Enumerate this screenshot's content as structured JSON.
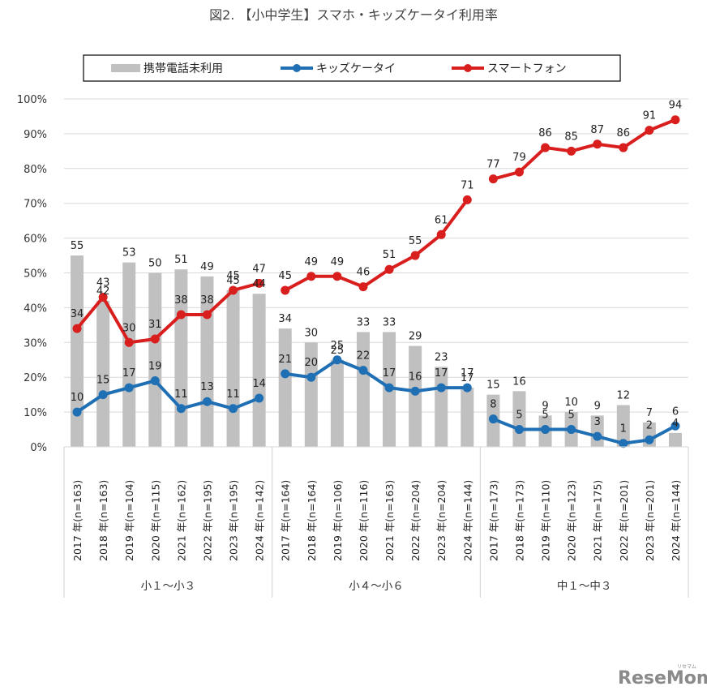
{
  "page": {
    "watermark": "ReseMom",
    "watermark_ruby": "リセマム"
  },
  "chart_data": {
    "type": "bar",
    "title": "図2. 【小中学生】スマホ・キッズケータイ利用率",
    "xlabel": "",
    "ylabel": "",
    "ylim": [
      0,
      100
    ],
    "yticks": [
      "0%",
      "10%",
      "20%",
      "30%",
      "40%",
      "50%",
      "60%",
      "70%",
      "80%",
      "90%",
      "100%"
    ],
    "grid": true,
    "legend_position": "top",
    "legend": [
      {
        "name": "携帯電話未利用",
        "kind": "bar",
        "color": "#c0c0c0"
      },
      {
        "name": "キッズケータイ",
        "kind": "line",
        "color": "#1f6fb5"
      },
      {
        "name": "スマートフォン",
        "kind": "line",
        "color": "#d91e1e"
      }
    ],
    "groups": [
      {
        "label": "小１〜小３",
        "categories": [
          "2017 年(n=163)",
          "2018 年(n=163)",
          "2019 年(n=104)",
          "2020 年(n=115)",
          "2021 年(n=162)",
          "2022 年(n=195)",
          "2023 年(n=195)",
          "2024 年(n=142)"
        ]
      },
      {
        "label": "小４〜小６",
        "categories": [
          "2017 年(n=164)",
          "2018 年(n=164)",
          "2019 年(n=106)",
          "2020 年(n=116)",
          "2021 年(n=163)",
          "2022 年(n=204)",
          "2023 年(n=204)",
          "2024 年(n=144)"
        ]
      },
      {
        "label": "中１〜中３",
        "categories": [
          "2017 年(n=173)",
          "2018 年(n=173)",
          "2019 年(n=110)",
          "2020 年(n=123)",
          "2021 年(n=175)",
          "2022 年(n=201)",
          "2023 年(n=201)",
          "2024 年(n=144)"
        ]
      }
    ],
    "series": [
      {
        "name": "携帯電話未利用",
        "kind": "bar",
        "color": "#c0c0c0",
        "values": [
          [
            55,
            42,
            53,
            50,
            51,
            49,
            45,
            44
          ],
          [
            34,
            30,
            25,
            33,
            33,
            29,
            23,
            17
          ],
          [
            15,
            16,
            9,
            10,
            9,
            12,
            7,
            4
          ]
        ]
      },
      {
        "name": "キッズケータイ",
        "kind": "line",
        "color": "#1f6fb5",
        "values": [
          [
            10,
            15,
            17,
            19,
            11,
            13,
            11,
            14
          ],
          [
            21,
            20,
            25,
            22,
            17,
            16,
            17,
            17
          ],
          [
            8,
            5,
            5,
            5,
            3,
            1,
            2,
            6
          ]
        ]
      },
      {
        "name": "スマートフォン",
        "kind": "line",
        "color": "#d91e1e",
        "values": [
          [
            34,
            43,
            30,
            31,
            38,
            38,
            45,
            47
          ],
          [
            45,
            49,
            49,
            46,
            51,
            55,
            61,
            71
          ],
          [
            77,
            79,
            86,
            85,
            87,
            86,
            91,
            94
          ]
        ]
      }
    ]
  }
}
